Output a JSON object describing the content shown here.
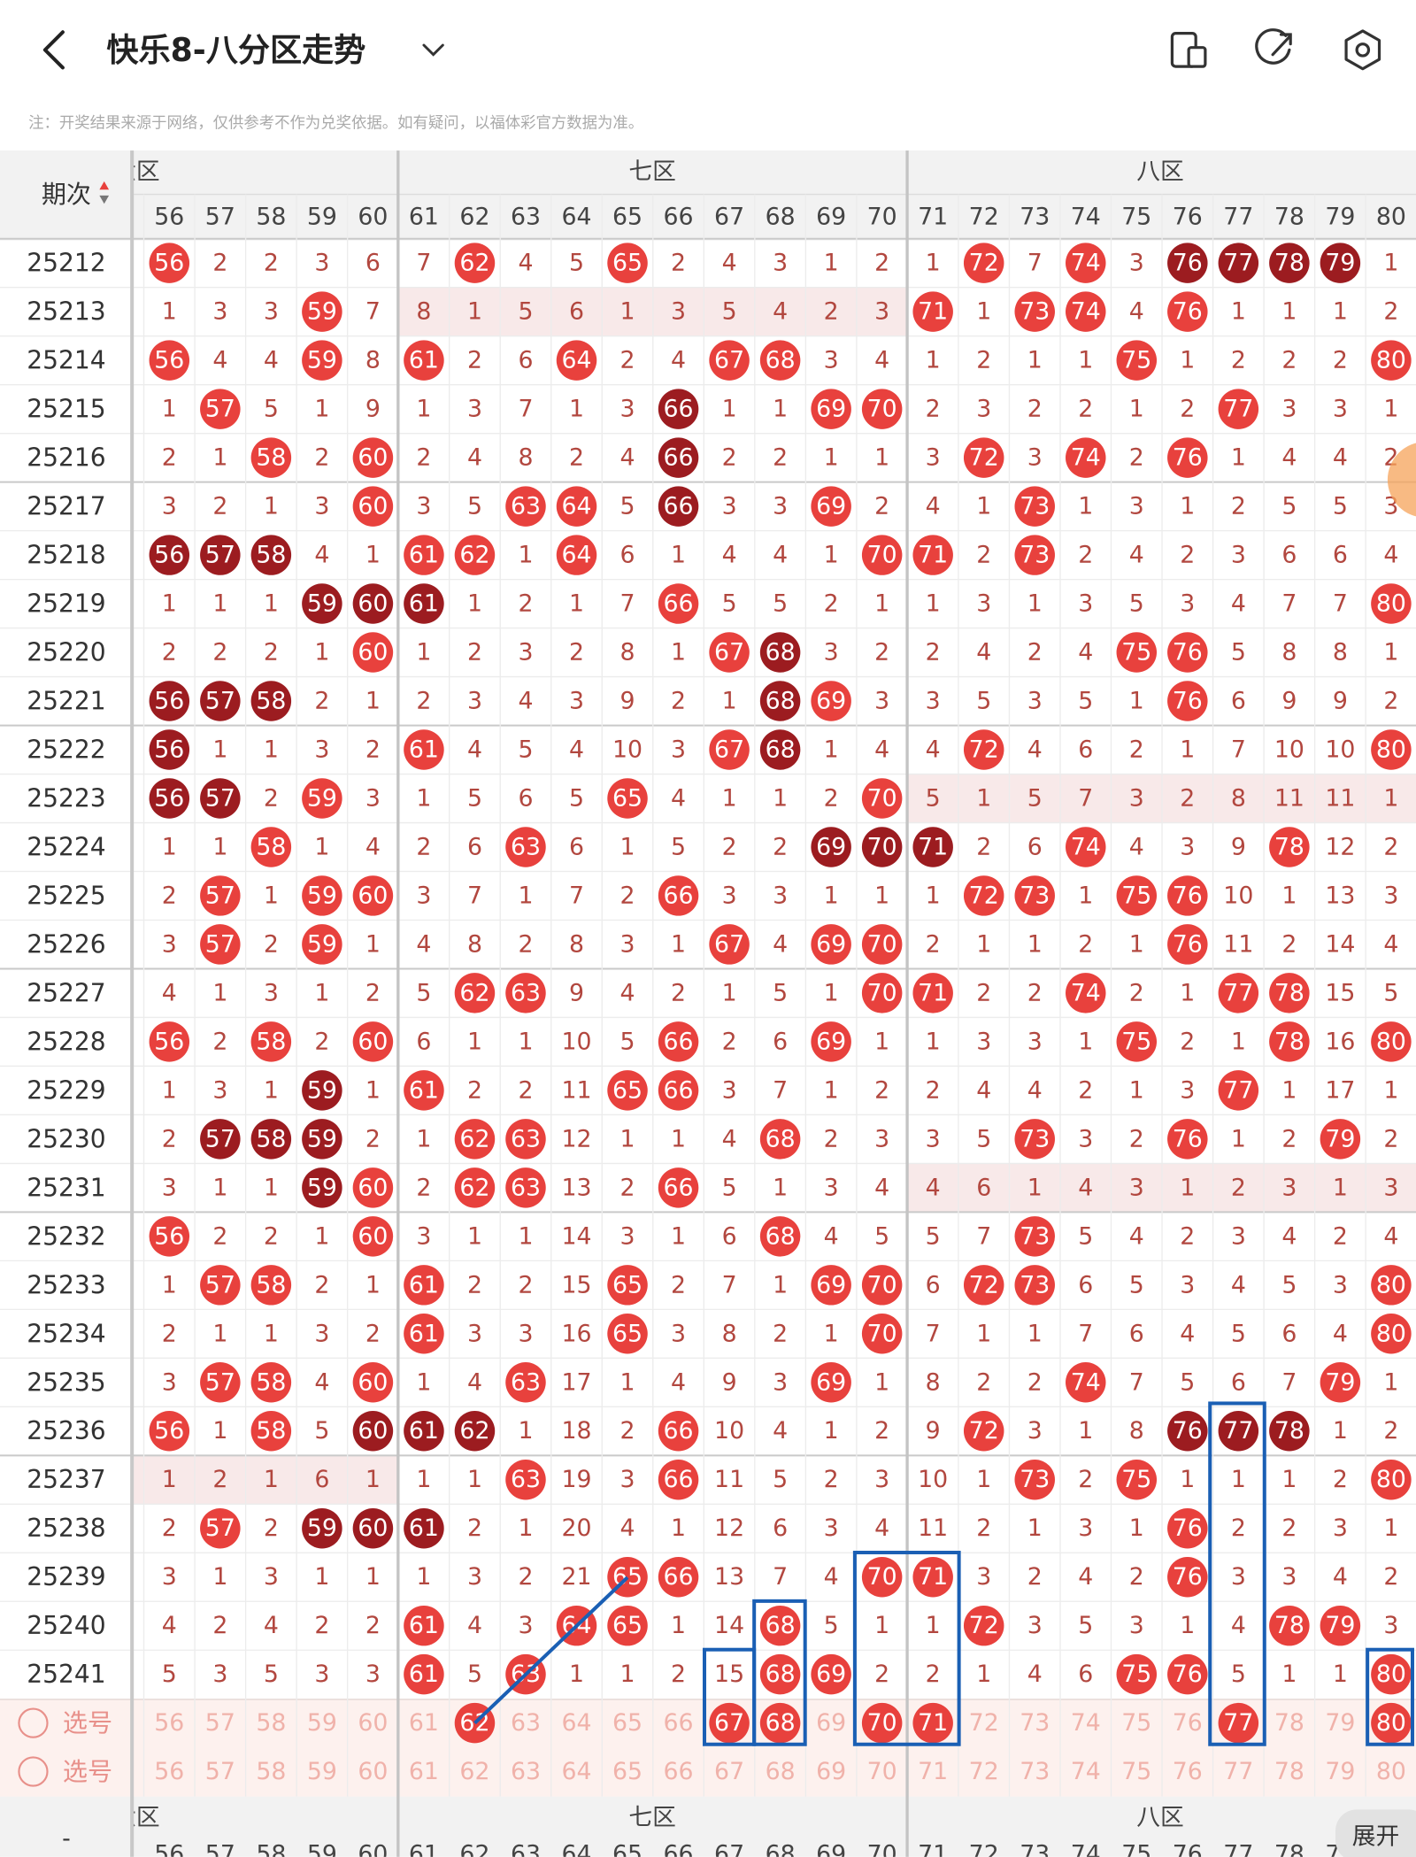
{
  "header": {
    "title": "快乐8-八分区走势",
    "note": "注：开奖结果来源于网络，仅供参考不作为兑奖依据。如有疑问，以福体彩官方数据为准。"
  },
  "table": {
    "issue_header": "期次",
    "zones": [
      "六区",
      "七区",
      "八区"
    ],
    "numbers": [
      56,
      57,
      58,
      59,
      60,
      61,
      62,
      63,
      64,
      65,
      66,
      67,
      68,
      69,
      70,
      71,
      72,
      73,
      74,
      75,
      76,
      77,
      78,
      79,
      80
    ],
    "rows": [
      {
        "issue": "25212",
        "cells": [
          56,
          2,
          2,
          3,
          6,
          7,
          62,
          4,
          5,
          65,
          2,
          4,
          3,
          1,
          2,
          1,
          72,
          7,
          74,
          3,
          76,
          77,
          78,
          79,
          1
        ],
        "dark": [
          76,
          77,
          78,
          79
        ]
      },
      {
        "issue": "25213",
        "cells": [
          1,
          3,
          3,
          59,
          7,
          8,
          1,
          5,
          6,
          1,
          3,
          5,
          4,
          2,
          3,
          71,
          1,
          73,
          74,
          4,
          76,
          1,
          1,
          1,
          2
        ],
        "highlight": "七区"
      },
      {
        "issue": "25214",
        "cells": [
          56,
          4,
          4,
          59,
          8,
          61,
          2,
          6,
          64,
          2,
          4,
          67,
          68,
          3,
          4,
          1,
          2,
          1,
          1,
          75,
          1,
          2,
          2,
          2,
          80
        ]
      },
      {
        "issue": "25215",
        "cells": [
          1,
          57,
          5,
          1,
          9,
          1,
          3,
          7,
          1,
          3,
          66,
          1,
          1,
          69,
          70,
          2,
          3,
          2,
          2,
          1,
          2,
          77,
          3,
          3,
          1
        ],
        "dark": [
          66
        ]
      },
      {
        "issue": "25216",
        "cells": [
          2,
          1,
          58,
          2,
          60,
          2,
          4,
          8,
          2,
          4,
          66,
          2,
          2,
          1,
          1,
          3,
          72,
          3,
          74,
          2,
          76,
          1,
          4,
          4,
          2
        ],
        "dark": [
          66
        ]
      },
      {
        "issue": "25217",
        "cells": [
          3,
          2,
          1,
          3,
          60,
          3,
          5,
          63,
          64,
          5,
          66,
          3,
          3,
          69,
          2,
          4,
          1,
          73,
          1,
          3,
          1,
          2,
          5,
          5,
          3
        ],
        "dark": [
          66
        ]
      },
      {
        "issue": "25218",
        "cells": [
          56,
          57,
          58,
          4,
          1,
          61,
          62,
          1,
          64,
          6,
          1,
          4,
          4,
          1,
          70,
          71,
          2,
          73,
          2,
          4,
          2,
          3,
          6,
          6,
          4
        ],
        "dark": [
          56,
          57,
          58
        ]
      },
      {
        "issue": "25219",
        "cells": [
          1,
          1,
          1,
          59,
          60,
          61,
          1,
          2,
          1,
          7,
          66,
          5,
          5,
          2,
          1,
          1,
          3,
          1,
          3,
          5,
          3,
          4,
          7,
          7,
          80
        ],
        "dark": [
          59,
          60,
          61
        ]
      },
      {
        "issue": "25220",
        "cells": [
          2,
          2,
          2,
          1,
          60,
          1,
          2,
          3,
          2,
          8,
          1,
          67,
          68,
          3,
          2,
          2,
          4,
          2,
          4,
          75,
          76,
          5,
          8,
          8,
          1
        ],
        "dark": [
          68
        ]
      },
      {
        "issue": "25221",
        "cells": [
          56,
          57,
          58,
          2,
          1,
          2,
          3,
          4,
          3,
          9,
          2,
          1,
          68,
          69,
          3,
          3,
          5,
          3,
          5,
          1,
          76,
          6,
          9,
          9,
          2
        ],
        "dark": [
          56,
          57,
          58,
          68
        ]
      },
      {
        "issue": "25222",
        "cells": [
          56,
          1,
          1,
          3,
          2,
          61,
          4,
          5,
          4,
          10,
          3,
          67,
          68,
          1,
          4,
          4,
          72,
          4,
          6,
          2,
          1,
          7,
          10,
          10,
          80
        ],
        "dark": [
          56,
          68
        ]
      },
      {
        "issue": "25223",
        "cells": [
          56,
          57,
          2,
          59,
          3,
          1,
          5,
          6,
          5,
          65,
          4,
          1,
          1,
          2,
          70,
          5,
          1,
          5,
          7,
          3,
          2,
          8,
          11,
          11,
          1
        ],
        "dark": [
          56,
          57
        ],
        "highlight": "八区"
      },
      {
        "issue": "25224",
        "cells": [
          1,
          1,
          58,
          1,
          4,
          2,
          6,
          63,
          6,
          1,
          5,
          2,
          2,
          69,
          70,
          71,
          2,
          6,
          74,
          4,
          3,
          9,
          78,
          12,
          2
        ],
        "dark": [
          69,
          70,
          71
        ]
      },
      {
        "issue": "25225",
        "cells": [
          2,
          57,
          1,
          59,
          60,
          3,
          7,
          1,
          7,
          2,
          66,
          3,
          3,
          1,
          1,
          1,
          72,
          73,
          1,
          75,
          76,
          10,
          1,
          13,
          3
        ]
      },
      {
        "issue": "25226",
        "cells": [
          3,
          57,
          2,
          59,
          1,
          4,
          8,
          2,
          8,
          3,
          1,
          67,
          4,
          69,
          70,
          2,
          1,
          1,
          2,
          1,
          76,
          11,
          2,
          14,
          4
        ]
      },
      {
        "issue": "25227",
        "cells": [
          4,
          1,
          3,
          1,
          2,
          5,
          62,
          63,
          9,
          4,
          2,
          1,
          5,
          1,
          70,
          71,
          2,
          2,
          74,
          2,
          1,
          77,
          78,
          15,
          5
        ]
      },
      {
        "issue": "25228",
        "cells": [
          56,
          2,
          58,
          2,
          60,
          6,
          1,
          1,
          10,
          5,
          66,
          2,
          6,
          69,
          1,
          1,
          3,
          3,
          1,
          75,
          2,
          1,
          78,
          16,
          80
        ]
      },
      {
        "issue": "25229",
        "cells": [
          1,
          3,
          1,
          59,
          1,
          61,
          2,
          2,
          11,
          65,
          66,
          3,
          7,
          1,
          2,
          2,
          4,
          4,
          2,
          1,
          3,
          77,
          1,
          17,
          1
        ],
        "dark": [
          59
        ]
      },
      {
        "issue": "25230",
        "cells": [
          2,
          57,
          58,
          59,
          2,
          1,
          62,
          63,
          12,
          1,
          1,
          4,
          68,
          2,
          3,
          3,
          5,
          73,
          3,
          2,
          76,
          1,
          2,
          79,
          2
        ],
        "dark": [
          57,
          58,
          59
        ]
      },
      {
        "issue": "25231",
        "cells": [
          3,
          1,
          1,
          59,
          60,
          2,
          62,
          63,
          13,
          2,
          66,
          5,
          1,
          3,
          4,
          4,
          6,
          1,
          4,
          3,
          1,
          2,
          3,
          1,
          3
        ],
        "dark": [
          59
        ],
        "highlight": "八区"
      },
      {
        "issue": "25232",
        "cells": [
          56,
          2,
          2,
          1,
          60,
          3,
          1,
          1,
          14,
          3,
          1,
          6,
          68,
          4,
          5,
          5,
          7,
          73,
          5,
          4,
          2,
          3,
          4,
          2,
          4
        ]
      },
      {
        "issue": "25233",
        "cells": [
          1,
          57,
          58,
          2,
          1,
          61,
          2,
          2,
          15,
          65,
          2,
          7,
          1,
          69,
          70,
          6,
          72,
          73,
          6,
          5,
          3,
          4,
          5,
          3,
          80
        ]
      },
      {
        "issue": "25234",
        "cells": [
          2,
          1,
          1,
          3,
          2,
          61,
          3,
          3,
          16,
          65,
          3,
          8,
          2,
          1,
          70,
          7,
          1,
          1,
          7,
          6,
          4,
          5,
          6,
          4,
          80
        ]
      },
      {
        "issue": "25235",
        "cells": [
          3,
          57,
          58,
          4,
          60,
          1,
          4,
          63,
          17,
          1,
          4,
          9,
          3,
          69,
          1,
          8,
          2,
          2,
          74,
          7,
          5,
          6,
          7,
          79,
          1
        ]
      },
      {
        "issue": "25236",
        "cells": [
          56,
          1,
          58,
          5,
          60,
          61,
          62,
          1,
          18,
          2,
          66,
          10,
          4,
          1,
          2,
          9,
          72,
          3,
          1,
          8,
          76,
          77,
          78,
          1,
          2
        ],
        "dark": [
          60,
          61,
          62,
          76,
          77,
          78
        ]
      },
      {
        "issue": "25237",
        "cells": [
          1,
          2,
          1,
          6,
          1,
          1,
          1,
          63,
          19,
          3,
          66,
          11,
          5,
          2,
          3,
          10,
          1,
          73,
          2,
          75,
          1,
          1,
          1,
          2,
          80
        ],
        "highlight": "六区"
      },
      {
        "issue": "25238",
        "cells": [
          2,
          57,
          2,
          59,
          60,
          61,
          2,
          1,
          20,
          4,
          1,
          12,
          6,
          3,
          4,
          11,
          2,
          1,
          3,
          1,
          76,
          2,
          2,
          3,
          1
        ],
        "dark": [
          59,
          60,
          61
        ]
      },
      {
        "issue": "25239",
        "cells": [
          3,
          1,
          3,
          1,
          1,
          1,
          3,
          2,
          21,
          65,
          66,
          13,
          7,
          4,
          70,
          71,
          3,
          2,
          4,
          2,
          76,
          3,
          3,
          4,
          2
        ]
      },
      {
        "issue": "25240",
        "cells": [
          4,
          2,
          4,
          2,
          2,
          61,
          4,
          3,
          64,
          65,
          1,
          14,
          68,
          5,
          1,
          1,
          72,
          3,
          5,
          3,
          1,
          4,
          78,
          79,
          3
        ]
      },
      {
        "issue": "25241",
        "cells": [
          5,
          3,
          5,
          3,
          3,
          61,
          5,
          63,
          1,
          1,
          2,
          15,
          68,
          69,
          2,
          2,
          1,
          4,
          6,
          75,
          76,
          5,
          1,
          1,
          80
        ]
      }
    ],
    "picks": [
      {
        "label": "选号",
        "selected": [
          62,
          67,
          68,
          70,
          71,
          77,
          80
        ]
      },
      {
        "label": "选号",
        "selected": []
      }
    ],
    "footer_issue": "-"
  },
  "expand_button": "展开"
}
